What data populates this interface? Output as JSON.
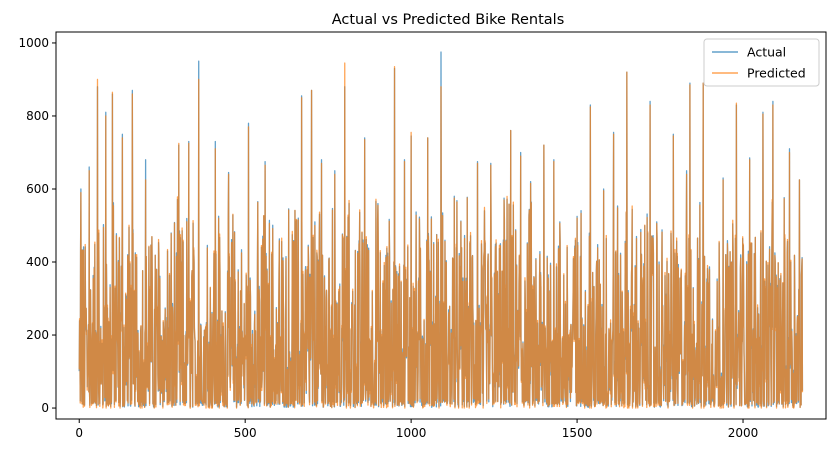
{
  "chart_data": {
    "type": "line",
    "title": "Actual vs Predicted Bike Rentals",
    "xlabel": "",
    "ylabel": "",
    "xlim": [
      -70,
      2250
    ],
    "ylim": [
      -30,
      1030
    ],
    "x_ticks": [
      0,
      500,
      1000,
      1500,
      2000
    ],
    "y_ticks": [
      0,
      200,
      400,
      600,
      800,
      1000
    ],
    "legend_position": "top-right",
    "grid": false,
    "n_points": 2180,
    "series": [
      {
        "name": "Actual",
        "color": "#1f77b4",
        "opacity": 0.7,
        "peaks": [
          [
            5,
            600
          ],
          [
            30,
            660
          ],
          [
            55,
            880
          ],
          [
            80,
            810
          ],
          [
            100,
            860
          ],
          [
            130,
            750
          ],
          [
            160,
            870
          ],
          [
            200,
            680
          ],
          [
            300,
            720
          ],
          [
            330,
            730
          ],
          [
            360,
            950
          ],
          [
            410,
            730
          ],
          [
            450,
            645
          ],
          [
            510,
            780
          ],
          [
            560,
            675
          ],
          [
            660,
            520
          ],
          [
            670,
            855
          ],
          [
            700,
            870
          ],
          [
            730,
            680
          ],
          [
            770,
            650
          ],
          [
            800,
            880
          ],
          [
            860,
            740
          ],
          [
            900,
            560
          ],
          [
            950,
            930
          ],
          [
            980,
            680
          ],
          [
            1000,
            745
          ],
          [
            1050,
            740
          ],
          [
            1090,
            975
          ],
          [
            1130,
            580
          ],
          [
            1200,
            675
          ],
          [
            1240,
            670
          ],
          [
            1280,
            575
          ],
          [
            1300,
            760
          ],
          [
            1330,
            700
          ],
          [
            1360,
            620
          ],
          [
            1400,
            720
          ],
          [
            1430,
            680
          ],
          [
            1500,
            525
          ],
          [
            1540,
            830
          ],
          [
            1580,
            600
          ],
          [
            1610,
            755
          ],
          [
            1650,
            920
          ],
          [
            1720,
            840
          ],
          [
            1740,
            510
          ],
          [
            1790,
            750
          ],
          [
            1830,
            650
          ],
          [
            1840,
            890
          ],
          [
            1880,
            890
          ],
          [
            1940,
            630
          ],
          [
            1980,
            830
          ],
          [
            2020,
            685
          ],
          [
            2060,
            810
          ],
          [
            2090,
            840
          ],
          [
            2140,
            710
          ],
          [
            2170,
            625
          ]
        ]
      },
      {
        "name": "Predicted",
        "color": "#ff7f0e",
        "opacity": 0.7,
        "peaks": [
          [
            5,
            590
          ],
          [
            30,
            650
          ],
          [
            55,
            900
          ],
          [
            80,
            800
          ],
          [
            100,
            865
          ],
          [
            130,
            740
          ],
          [
            160,
            860
          ],
          [
            200,
            625
          ],
          [
            300,
            725
          ],
          [
            330,
            725
          ],
          [
            360,
            900
          ],
          [
            410,
            710
          ],
          [
            450,
            640
          ],
          [
            510,
            770
          ],
          [
            560,
            665
          ],
          [
            660,
            515
          ],
          [
            670,
            850
          ],
          [
            700,
            870
          ],
          [
            730,
            670
          ],
          [
            770,
            640
          ],
          [
            800,
            945
          ],
          [
            860,
            735
          ],
          [
            900,
            555
          ],
          [
            950,
            935
          ],
          [
            980,
            675
          ],
          [
            1000,
            755
          ],
          [
            1050,
            740
          ],
          [
            1090,
            880
          ],
          [
            1130,
            575
          ],
          [
            1200,
            670
          ],
          [
            1240,
            665
          ],
          [
            1280,
            570
          ],
          [
            1300,
            760
          ],
          [
            1330,
            690
          ],
          [
            1360,
            615
          ],
          [
            1400,
            720
          ],
          [
            1430,
            675
          ],
          [
            1500,
            520
          ],
          [
            1540,
            825
          ],
          [
            1580,
            595
          ],
          [
            1610,
            750
          ],
          [
            1650,
            920
          ],
          [
            1720,
            830
          ],
          [
            1740,
            505
          ],
          [
            1790,
            745
          ],
          [
            1830,
            640
          ],
          [
            1840,
            885
          ],
          [
            1880,
            890
          ],
          [
            1940,
            625
          ],
          [
            1980,
            835
          ],
          [
            2020,
            680
          ],
          [
            2060,
            805
          ],
          [
            2090,
            830
          ],
          [
            2140,
            700
          ],
          [
            2170,
            625
          ]
        ]
      }
    ]
  }
}
